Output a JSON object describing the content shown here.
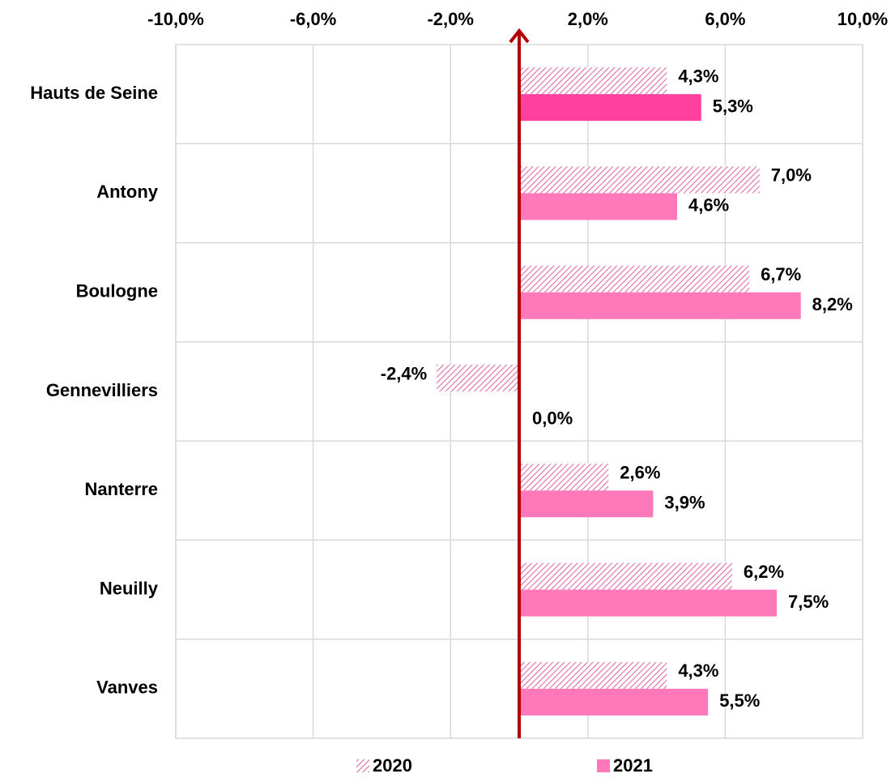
{
  "chart_data": {
    "type": "hbar",
    "categories": [
      "Hauts de Seine",
      "Antony",
      "Boulogne",
      "Gennevilliers",
      "Nanterre",
      "Neuilly",
      "Vanves"
    ],
    "series": [
      {
        "name": "2020",
        "color": "#e0609e",
        "pattern": "hatch",
        "values": [
          4.3,
          7.0,
          6.7,
          -2.4,
          2.6,
          6.2,
          4.3
        ],
        "value_labels": [
          "4,3%",
          "7,0%",
          "6,7%",
          "-2,4%",
          "2,6%",
          "6,2%",
          "4,3%"
        ]
      },
      {
        "name": "2021",
        "color": "#ff78b9",
        "colors": [
          "#ff409e",
          "#ff78b9",
          "#ff78b9",
          "#ff78b9",
          "#ff78b9",
          "#ff78b9",
          "#ff78b9"
        ],
        "values": [
          5.3,
          4.6,
          8.2,
          0.0,
          3.9,
          7.5,
          5.5
        ],
        "value_labels": [
          "5,3%",
          "4,6%",
          "8,2%",
          "0,0%",
          "3,9%",
          "7,5%",
          "5,5%"
        ]
      }
    ],
    "xlim": [
      -10,
      10
    ],
    "xticks": [
      {
        "value": -10,
        "label": "-10,0%"
      },
      {
        "value": -6,
        "label": "-6,0%"
      },
      {
        "value": -2,
        "label": "-2,0%"
      },
      {
        "value": 2,
        "label": "2,0%"
      },
      {
        "value": 6,
        "label": "6,0%"
      },
      {
        "value": 10,
        "label": "10,0%"
      }
    ],
    "grid": true,
    "legend": "bottom"
  }
}
